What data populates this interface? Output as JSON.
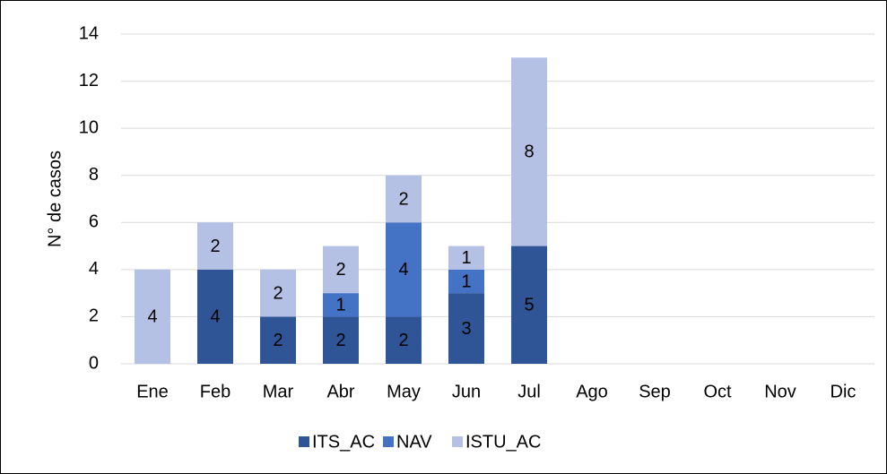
{
  "chart_data": {
    "type": "bar",
    "stacked": true,
    "y_label": "N° de casos",
    "categories": [
      "Ene",
      "Feb",
      "Mar",
      "Abr",
      "May",
      "Jun",
      "Jul",
      "Ago",
      "Sep",
      "Oct",
      "Nov",
      "Dic"
    ],
    "series": [
      {
        "name": "ITS_AC",
        "color": "#2f5597",
        "values": [
          null,
          4,
          2,
          2,
          2,
          3,
          5,
          null,
          null,
          null,
          null,
          null
        ]
      },
      {
        "name": "NAV",
        "color": "#4472c4",
        "values": [
          null,
          null,
          null,
          1,
          4,
          1,
          null,
          null,
          null,
          null,
          null,
          null
        ]
      },
      {
        "name": "ISTU_AC",
        "color": "#b4c0e4",
        "values": [
          4,
          2,
          2,
          2,
          2,
          1,
          8,
          null,
          null,
          null,
          null,
          null
        ]
      }
    ],
    "ylim": [
      0,
      14
    ],
    "yticks": [
      0,
      2,
      4,
      6,
      8,
      10,
      12,
      14
    ],
    "grid": true,
    "legend": "bottom"
  }
}
